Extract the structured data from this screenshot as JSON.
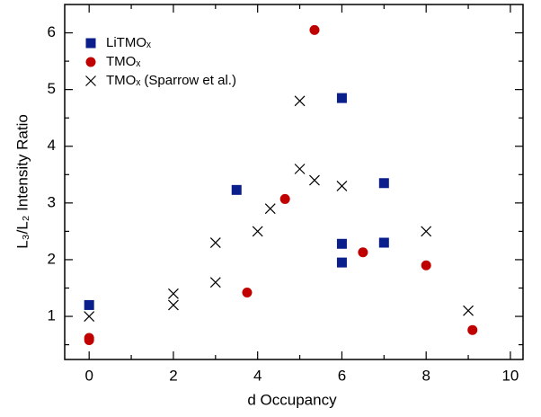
{
  "chart_data": {
    "type": "scatter",
    "xlabel": "d Occupancy",
    "ylabel": "L₃/L₂ Intensity Ratio",
    "xlim": [
      -0.58,
      10.3
    ],
    "ylim": [
      0.24,
      6.5
    ],
    "xticks": [
      0,
      2,
      4,
      6,
      8,
      10
    ],
    "yticks": [
      1,
      2,
      3,
      4,
      5,
      6
    ],
    "xminorticks": [
      1,
      3,
      5,
      7,
      9
    ],
    "yminorticks": [
      0.5,
      1.5,
      2.5,
      3.5,
      4.5,
      5.5
    ],
    "grid": false,
    "legend": "upper left",
    "series": [
      {
        "name": "LiTMOₓ",
        "color": "#0b1f8c",
        "marker": "square",
        "x": [
          0,
          3.5,
          6,
          6,
          6,
          7,
          7
        ],
        "y": [
          1.2,
          3.23,
          4.85,
          2.28,
          1.95,
          3.35,
          2.3
        ]
      },
      {
        "name": "TMOₓ",
        "color": "#c00000",
        "marker": "circle",
        "x": [
          0,
          0,
          3.75,
          4.65,
          5.35,
          6.5,
          8,
          9.1
        ],
        "y": [
          0.62,
          0.58,
          1.42,
          3.07,
          6.05,
          2.13,
          1.9,
          0.76
        ]
      },
      {
        "name": "TMOₓ (Sparrow et al.)",
        "color": "#000000",
        "marker": "cross",
        "x": [
          0,
          2,
          2,
          3,
          3,
          4,
          4.3,
          5,
          5,
          5.35,
          6,
          8,
          9
        ],
        "y": [
          1.0,
          1.4,
          1.2,
          2.3,
          1.6,
          2.5,
          2.9,
          4.8,
          3.6,
          3.4,
          3.3,
          2.5,
          1.1
        ]
      }
    ]
  }
}
